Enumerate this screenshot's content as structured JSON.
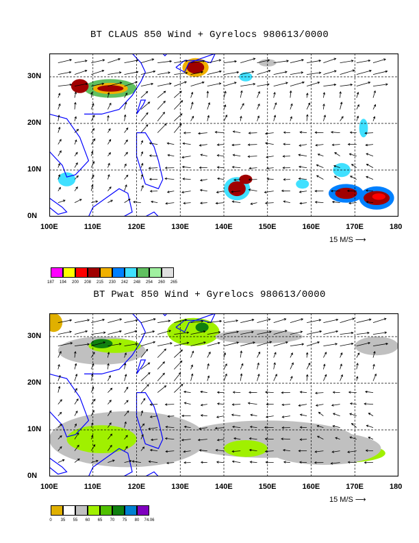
{
  "panels": [
    {
      "title": "BT CLAUS 850 Wind + Gyrelocs 980613/0000",
      "field": "brightness-temperature",
      "legend": {
        "colors": [
          "#ff00ff",
          "#ffff00",
          "#ff0000",
          "#a00000",
          "#f0b000",
          "#0080ff",
          "#40e0ff",
          "#60c060",
          "#a0f0a0",
          "#e0e0e0"
        ],
        "labels": [
          "187",
          "194",
          "200",
          "208",
          "215",
          "230",
          "242",
          "248",
          "254",
          "260",
          "265"
        ]
      }
    },
    {
      "title": "BT Pwat 850 Wind + Gyrelocs 980613/0000",
      "field": "precipitable-water",
      "legend": {
        "colors": [
          "#e0b000",
          "#ffffff",
          "#c0c0c0",
          "#a0f000",
          "#50c000",
          "#108010",
          "#0080d0",
          "#8000c0"
        ],
        "labels": [
          "0",
          "35",
          "55",
          "60",
          "65",
          "70",
          "75",
          "80",
          "74.06"
        ]
      }
    }
  ],
  "axes": {
    "x_ticks": [
      "100E",
      "110E",
      "120E",
      "130E",
      "140E",
      "150E",
      "160E",
      "170E",
      "180"
    ],
    "y_ticks": [
      "30N",
      "20N",
      "10N",
      "0N"
    ],
    "x_range": [
      100,
      180
    ],
    "y_range": [
      0,
      35
    ]
  },
  "wind_scale": {
    "label": "15 M/S"
  },
  "colors": {
    "coast": "#0000ff",
    "grid": "#000000"
  }
}
